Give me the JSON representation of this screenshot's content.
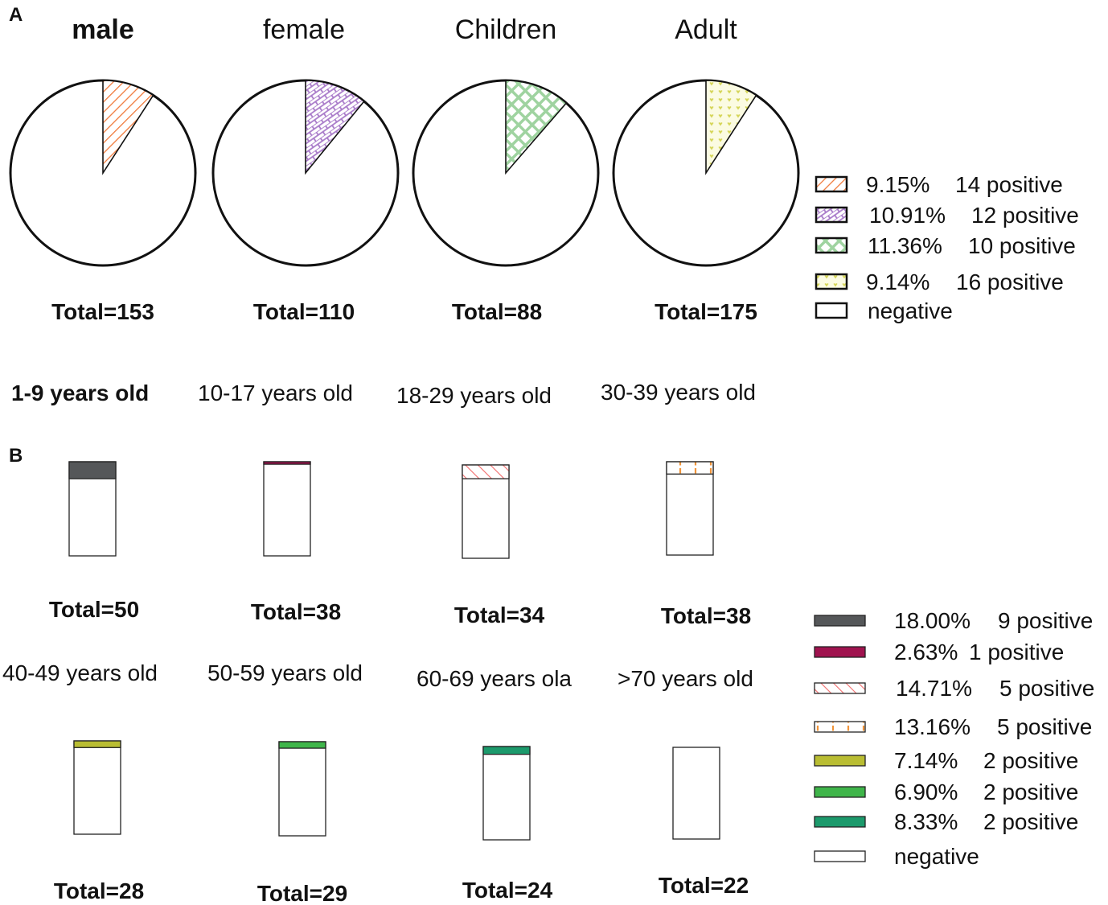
{
  "chart_data": [
    {
      "panel": "A",
      "type": "pie",
      "charts": [
        {
          "title": "male",
          "total_label": "Total=153",
          "total": 153,
          "positive": 14,
          "percent": 9.15,
          "pattern": "hatch",
          "color": "#f07a3c"
        },
        {
          "title": "female",
          "total_label": "Total=110",
          "total": 110,
          "positive": 12,
          "percent": 10.91,
          "pattern": "brick",
          "color": "#a879c9"
        },
        {
          "title": "Children",
          "total_label": "Total=88",
          "total": 88,
          "positive": 10,
          "percent": 11.36,
          "pattern": "diamond",
          "color": "#9fd3a0"
        },
        {
          "title": "Adult",
          "total_label": "Total=175",
          "total": 175,
          "positive": 16,
          "percent": 9.14,
          "pattern": "hearts",
          "color": "#d9d96a"
        }
      ],
      "legend": [
        {
          "pct": "9.15%",
          "label": "14 positive",
          "pattern": "hatch",
          "color": "#f07a3c"
        },
        {
          "pct": "10.91%",
          "label": "12 positive",
          "pattern": "brick",
          "color": "#a879c9"
        },
        {
          "pct": "11.36%",
          "label": "10 positive",
          "pattern": "diamond",
          "color": "#9fd3a0"
        },
        {
          "pct": "9.14%",
          "label": "16 positive",
          "pattern": "hearts",
          "color": "#d9d96a"
        },
        {
          "pct": "",
          "label": "negative",
          "pattern": "none",
          "color": "#ffffff"
        }
      ]
    },
    {
      "panel": "B",
      "type": "bar",
      "stacked": true,
      "bars": [
        {
          "title": "1-9 years old",
          "total_label": "Total=50",
          "total": 50,
          "positive": 9,
          "percent": 18.0,
          "pattern": "solid",
          "color": "#555759"
        },
        {
          "title": "10-17 years old",
          "total_label": "Total=38",
          "total": 38,
          "positive": 1,
          "percent": 2.63,
          "pattern": "solid",
          "color": "#a0134f"
        },
        {
          "title": "18-29 years old",
          "total_label": "Total=34",
          "total": 34,
          "positive": 5,
          "percent": 14.71,
          "pattern": "diag",
          "color": "#f26d6d"
        },
        {
          "title": "30-39 years old",
          "total_label": "Total=38",
          "total": 38,
          "positive": 5,
          "percent": 13.16,
          "pattern": "vlines",
          "color": "#f0943a"
        },
        {
          "title": "40-49  years old",
          "total_label": "Total=28",
          "total": 28,
          "positive": 2,
          "percent": 7.14,
          "pattern": "solid",
          "color": "#b9bd32"
        },
        {
          "title": "50-59  years old",
          "total_label": "Total=29",
          "total": 29,
          "positive": 2,
          "percent": 6.9,
          "pattern": "solid",
          "color": "#3fb54a"
        },
        {
          "title": "60-69 years ola",
          "total_label": "Total=24",
          "total": 24,
          "positive": 2,
          "percent": 8.33,
          "pattern": "solid",
          "color": "#1c9a6c"
        },
        {
          "title": ">70 years old",
          "total_label": "Total=22",
          "total": 22,
          "positive": 0,
          "percent": 0,
          "pattern": "none",
          "color": "#ffffff"
        }
      ],
      "legend": [
        {
          "pct": "18.00%",
          "label": "9 positive",
          "pattern": "solid",
          "color": "#555759"
        },
        {
          "pct": "2.63%",
          "label": "1 positive",
          "pattern": "solid",
          "color": "#a0134f"
        },
        {
          "pct": "14.71%",
          "label": "5 positive",
          "pattern": "diag",
          "color": "#f26d6d"
        },
        {
          "pct": "13.16%",
          "label": "5 positive",
          "pattern": "vlines",
          "color": "#f0943a"
        },
        {
          "pct": "7.14%",
          "label": "2 positive",
          "pattern": "solid",
          "color": "#b9bd32"
        },
        {
          "pct": "6.90%",
          "label": "2 positive",
          "pattern": "solid",
          "color": "#3fb54a"
        },
        {
          "pct": "8.33%",
          "label": "2 positive",
          "pattern": "solid",
          "color": "#1c9a6c"
        },
        {
          "pct": "",
          "label": "negative",
          "pattern": "none",
          "color": "#ffffff"
        }
      ]
    }
  ]
}
